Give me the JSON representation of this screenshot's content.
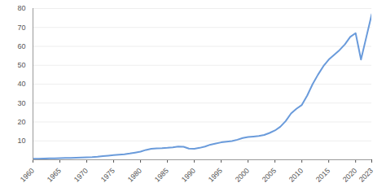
{
  "chart_data": {
    "type": "line",
    "x": [
      1960,
      1961,
      1962,
      1963,
      1964,
      1965,
      1966,
      1967,
      1968,
      1969,
      1970,
      1971,
      1972,
      1973,
      1974,
      1975,
      1976,
      1977,
      1978,
      1979,
      1980,
      1981,
      1982,
      1983,
      1984,
      1985,
      1986,
      1987,
      1988,
      1989,
      1990,
      1991,
      1992,
      1993,
      1994,
      1995,
      1996,
      1997,
      1998,
      1999,
      2000,
      2001,
      2002,
      2003,
      2004,
      2005,
      2006,
      2007,
      2008,
      2009,
      2010,
      2011,
      2012,
      2013,
      2014,
      2015,
      2016,
      2017,
      2018,
      2019,
      2020,
      2021,
      2022,
      2023
    ],
    "values": [
      0.5,
      0.5,
      0.6,
      0.7,
      0.8,
      0.9,
      1.0,
      1.0,
      1.1,
      1.2,
      1.3,
      1.4,
      1.6,
      1.9,
      2.2,
      2.5,
      2.7,
      2.9,
      3.3,
      3.8,
      4.3,
      5.2,
      5.8,
      6.0,
      6.1,
      6.3,
      6.6,
      7.0,
      6.9,
      5.9,
      5.8,
      6.3,
      7.0,
      8.0,
      8.6,
      9.2,
      9.6,
      9.9,
      10.6,
      11.5,
      12.0,
      12.3,
      12.6,
      13.1,
      14.2,
      15.5,
      17.5,
      20.5,
      24.5,
      27.0,
      29.0,
      34.0,
      40.0,
      45.0,
      49.5,
      53.0,
      55.5,
      58.0,
      61.0,
      65.0,
      67.0,
      53.0,
      65.0,
      77.0
    ],
    "color": "#6a9bdb",
    "xlim": [
      1960,
      2023
    ],
    "xticks": [
      1960,
      1965,
      1970,
      1975,
      1980,
      1985,
      1990,
      1995,
      2000,
      2005,
      2010,
      2015,
      2020,
      2023
    ],
    "ylim": [
      0,
      80
    ],
    "yticks": [
      10,
      20,
      30,
      40,
      50,
      60,
      70,
      80
    ],
    "grid": true
  }
}
